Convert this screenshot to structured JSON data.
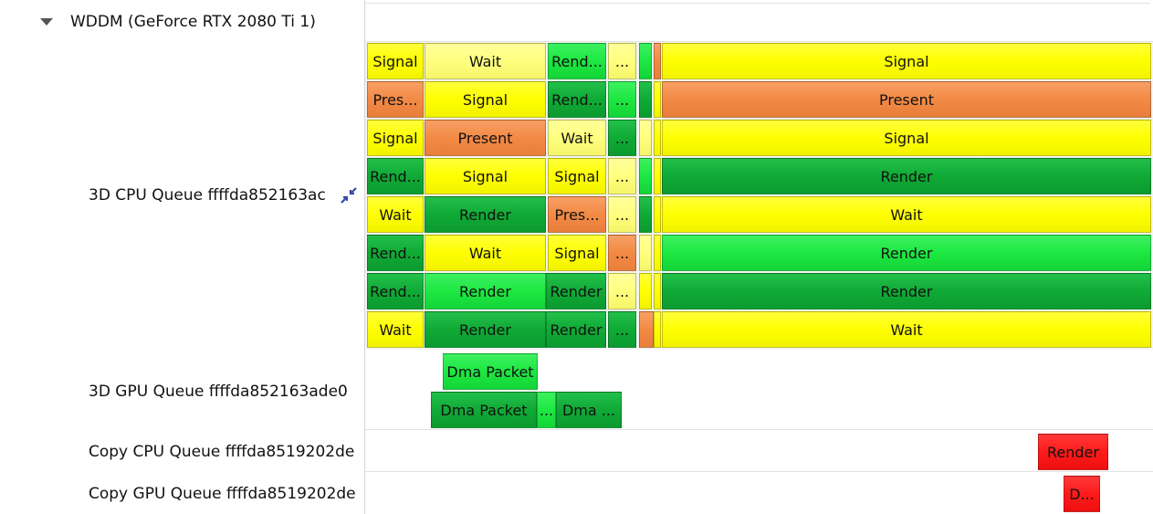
{
  "tree": {
    "group": "WDDM (GeForce RTX 2080 Ti 1)",
    "queues": [
      {
        "name": "3D CPU Queue ffffda852163ac",
        "lanes": [
          [
            "Signal",
            "Wait",
            "Rend...",
            "...",
            "Signal"
          ],
          [
            "Pres...",
            "Signal",
            "Rend...",
            "...",
            "Present"
          ],
          [
            "Signal",
            "Present",
            "Wait",
            "...",
            "Signal"
          ],
          [
            "Rend...",
            "Signal",
            "Signal",
            "...",
            "Render"
          ],
          [
            "Wait",
            "Render",
            "Pres...",
            "...",
            "Wait"
          ],
          [
            "Rend...",
            "Wait",
            "Signal",
            "...",
            "Render"
          ],
          [
            "Rend...",
            "Render",
            "Render",
            "...",
            "Render"
          ],
          [
            "Wait",
            "Render",
            "Render",
            "...",
            "Wait"
          ]
        ]
      },
      {
        "name": "3D GPU Queue ffffda852163ade0",
        "lanes": [
          [
            "Dma Packet"
          ],
          [
            "Dma Packet",
            "...",
            "Dma ..."
          ]
        ]
      },
      {
        "name": "Copy CPU Queue ffffda8519202de",
        "lanes": [
          [
            "Render"
          ]
        ]
      },
      {
        "name": "Copy GPU Queue ffffda8519202de",
        "lanes": [
          [
            "D..."
          ]
        ]
      }
    ]
  }
}
